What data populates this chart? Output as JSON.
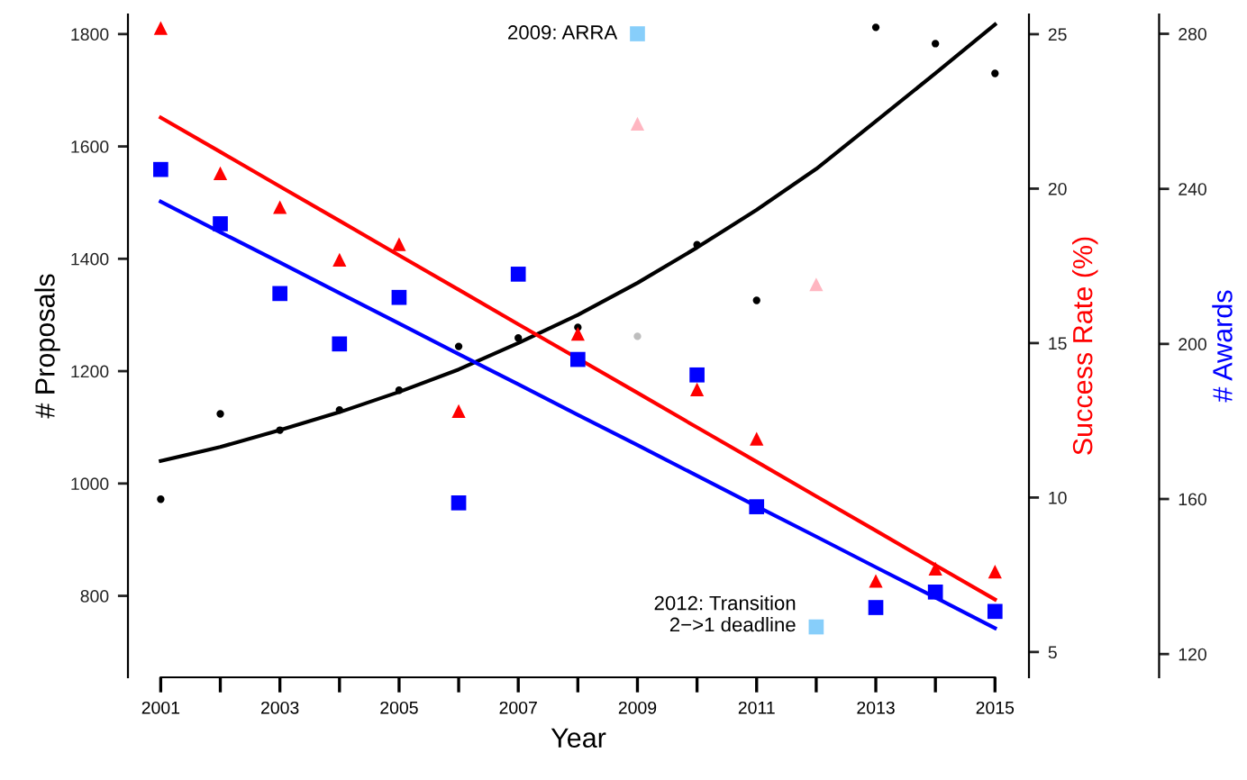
{
  "chart_data": {
    "type": "scatter",
    "xlabel": "Year",
    "ylabel": "# Proposals",
    "y2label": "Success Rate (%)",
    "y3label": "# Awards",
    "x": [
      2001,
      2002,
      2003,
      2004,
      2005,
      2006,
      2007,
      2008,
      2009,
      2010,
      2011,
      2012,
      2013,
      2014,
      2015
    ],
    "xlim": [
      2000.45,
      2015.57
    ],
    "xticks": [
      2001,
      {
        "value": 2002,
        "label": null
      },
      2003,
      {
        "value": 2004,
        "label": null
      },
      2005,
      {
        "value": 2006,
        "label": null
      },
      2007,
      {
        "value": 2008,
        "label": null
      },
      2009,
      {
        "value": 2010,
        "label": null
      },
      2011,
      {
        "value": 2012,
        "label": null
      },
      2013,
      {
        "value": 2014,
        "label": null
      },
      2015
    ],
    "ylim": [
      655,
      1835
    ],
    "yticks": [
      800,
      1000,
      1200,
      1400,
      1600,
      1800
    ],
    "y2lim": [
      4.18,
      25.64
    ],
    "y2ticks": [
      5,
      10,
      15,
      20,
      25
    ],
    "y3lim": [
      114,
      285
    ],
    "y3ticks": [
      120,
      160,
      200,
      240,
      280
    ],
    "series": [
      {
        "axis": "y",
        "marker": "circle",
        "colors": [
          "#000000",
          "#000000",
          "#000000",
          "#000000",
          "#000000",
          "#000000",
          "#000000",
          "#000000",
          "#bebebe",
          "#000000",
          "#000000",
          "#000000",
          "#000000",
          "#000000",
          "#000000"
        ],
        "values": [
          972,
          1124,
          1095,
          1131,
          1166,
          1244,
          1259,
          1278,
          1262,
          1425,
          1326,
          null,
          1812,
          1783,
          1730
        ]
      },
      {
        "axis": "y2",
        "marker": "triangle",
        "colors": [
          "#ff0000",
          "#ff0000",
          "#ff0000",
          "#ff0000",
          "#ff0000",
          "#ff0000",
          "#ff0000",
          "#ff0000",
          "#ffb6c1",
          "#ff0000",
          "#ff0000",
          "#ffb6c1",
          "#ff0000",
          "#ff0000",
          "#ff0000"
        ],
        "values": [
          25.2,
          20.5,
          19.4,
          17.7,
          18.2,
          12.8,
          null,
          15.3,
          22.1,
          13.5,
          11.9,
          16.9,
          7.3,
          7.7,
          7.6
        ]
      },
      {
        "axis": "y3",
        "marker": "square",
        "colors": [
          "#0000ff",
          "#0000ff",
          "#0000ff",
          "#0000ff",
          "#0000ff",
          "#0000ff",
          "#0000ff",
          "#0000ff",
          "#87cefa",
          "#0000ff",
          "#0000ff",
          "#87cefa",
          "#0000ff",
          "#0000ff",
          "#0000ff"
        ],
        "values": [
          245,
          231,
          213,
          200,
          212,
          159,
          218,
          196,
          280,
          192,
          158,
          127,
          132,
          136,
          131
        ]
      },
      {
        "type": "line",
        "axis": "y",
        "color": "#000000",
        "values": [
          1040,
          1065,
          1095,
          1127,
          1163,
          1203,
          1250,
          1300,
          1357,
          1420,
          1487,
          1560,
          1645,
          1730,
          1817
        ]
      },
      {
        "type": "line",
        "axis": "y2",
        "color": "#ff0000",
        "values": [
          22.3,
          21.19,
          20.07,
          18.96,
          17.84,
          16.73,
          15.61,
          14.5,
          13.39,
          12.27,
          11.16,
          10.04,
          8.93,
          7.81,
          6.7
        ]
      },
      {
        "type": "line",
        "axis": "y3",
        "color": "#0000ff",
        "values": [
          236.7,
          228.8,
          221.0,
          213.1,
          205.3,
          197.4,
          189.6,
          181.7,
          173.9,
          166.0,
          158.1,
          150.3,
          142.4,
          134.6,
          126.7
        ]
      }
    ],
    "annotations": [
      {
        "text": "2009: ARRA",
        "x": 2009,
        "y": 1800
      },
      {
        "text": "2012: Transition\n2−>1 deadline",
        "x": 2012,
        "y": 765
      }
    ],
    "grid": false,
    "legend": false
  }
}
